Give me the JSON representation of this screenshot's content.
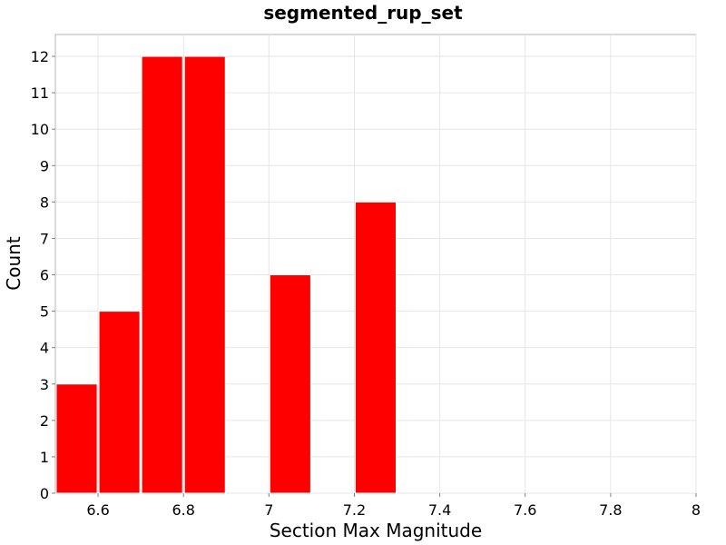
{
  "chart_data": {
    "type": "bar",
    "title": "segmented_rup_set",
    "xlabel": "Section Max Magnitude",
    "ylabel": "Count",
    "xlim": [
      6.5,
      8
    ],
    "ylim": [
      0,
      12.6
    ],
    "bin_width": 0.1,
    "bins": [
      {
        "x_start": 6.5,
        "x_end": 6.6,
        "count": 3
      },
      {
        "x_start": 6.6,
        "x_end": 6.7,
        "count": 5
      },
      {
        "x_start": 6.7,
        "x_end": 6.8,
        "count": 12
      },
      {
        "x_start": 6.8,
        "x_end": 6.9,
        "count": 12
      },
      {
        "x_start": 7.0,
        "x_end": 7.1,
        "count": 6
      },
      {
        "x_start": 7.2,
        "x_end": 7.3,
        "count": 8
      }
    ],
    "x_ticks": [
      {
        "value": 6.6,
        "label": "6.6"
      },
      {
        "value": 6.8,
        "label": "6.8"
      },
      {
        "value": 7.0,
        "label": "7"
      },
      {
        "value": 7.2,
        "label": "7.2"
      },
      {
        "value": 7.4,
        "label": "7.4"
      },
      {
        "value": 7.6,
        "label": "7.6"
      },
      {
        "value": 7.8,
        "label": "7.8"
      },
      {
        "value": 8.0,
        "label": "8"
      }
    ],
    "y_ticks": [
      {
        "value": 0,
        "label": "0"
      },
      {
        "value": 1,
        "label": "1"
      },
      {
        "value": 2,
        "label": "2"
      },
      {
        "value": 3,
        "label": "3"
      },
      {
        "value": 4,
        "label": "4"
      },
      {
        "value": 5,
        "label": "5"
      },
      {
        "value": 6,
        "label": "6"
      },
      {
        "value": 7,
        "label": "7"
      },
      {
        "value": 8,
        "label": "8"
      },
      {
        "value": 9,
        "label": "9"
      },
      {
        "value": 10,
        "label": "10"
      },
      {
        "value": 11,
        "label": "11"
      },
      {
        "value": 12,
        "label": "12"
      }
    ],
    "grid": true,
    "bar_color": "#ff0000",
    "bar_edge_color": "#ffffff"
  }
}
